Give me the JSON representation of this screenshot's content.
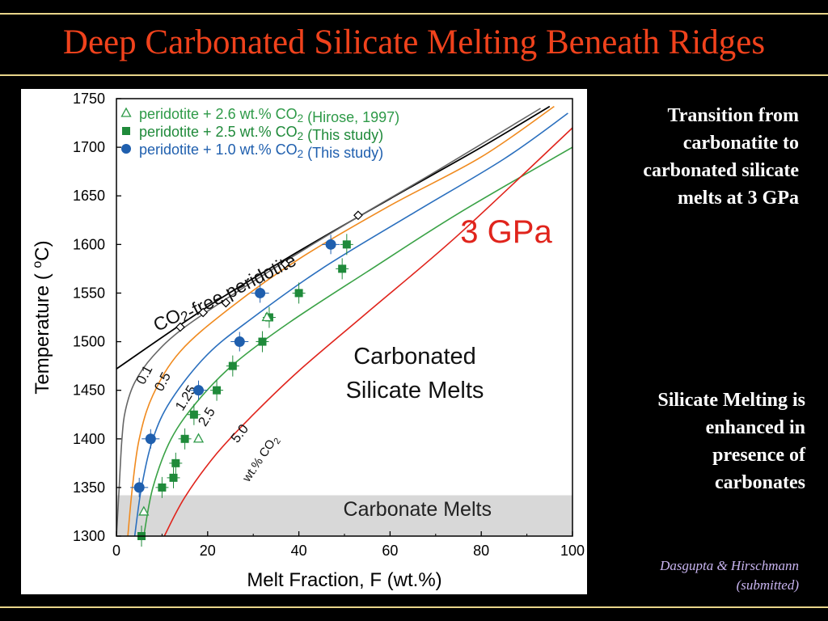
{
  "slide": {
    "title": "Deep Carbonated Silicate Melting Beneath Ridges",
    "note_top": [
      "Transition from",
      "carbonatite to",
      "carbonated silicate",
      "melts at 3 GPa"
    ],
    "note_bottom": [
      "Silicate Melting is",
      "enhanced in",
      "presence of",
      "carbonates"
    ],
    "citation": [
      "Dasgupta & Hirschmann",
      "(submitted)"
    ],
    "colors": {
      "background": "#000000",
      "title": "#f0421c",
      "rule": "#e8d58a",
      "citation": "#c8b4f0"
    }
  },
  "chart_data": {
    "type": "scatter",
    "xlabel": "Melt Fraction, F (wt.%)",
    "ylabel": "Temperature ( oC)",
    "xlim": [
      0,
      100
    ],
    "ylim": [
      1300,
      1750
    ],
    "xticks": [
      0,
      20,
      40,
      60,
      80,
      100
    ],
    "yticks": [
      1300,
      1350,
      1400,
      1450,
      1500,
      1550,
      1600,
      1650,
      1700,
      1750
    ],
    "pressure_label": "3 GPa",
    "region_labels": [
      "Carbonated",
      "Silicate Melts"
    ],
    "band": {
      "label": "Carbonate Melts",
      "ymin": 1300,
      "ymax": 1342,
      "color": "#d8d8d8"
    },
    "legend_position": "top-left",
    "legend": [
      {
        "marker": "triangle-open",
        "text": "peridotite + 2.6 wt.% CO2 (Hirose, 1997)",
        "color": "#2e9a48"
      },
      {
        "marker": "square",
        "text": "peridotite + 2.5 wt.% CO2 (This study)",
        "color": "#1f8a3a"
      },
      {
        "marker": "circle",
        "text": "peridotite + 1.0 wt.% CO2 (This study)",
        "color": "#1f5fae"
      }
    ],
    "curves": [
      {
        "label": "CO2-free peridotite",
        "color": "#000000",
        "points": [
          [
            0,
            1472
          ],
          [
            20,
            1536
          ],
          [
            40,
            1593
          ],
          [
            60,
            1647
          ],
          [
            80,
            1700
          ],
          [
            95,
            1742
          ]
        ]
      },
      {
        "label": "0.1",
        "color": "#666666",
        "points": [
          [
            0,
            1300
          ],
          [
            0.6,
            1350
          ],
          [
            1.2,
            1400
          ],
          [
            2,
            1430
          ],
          [
            4,
            1458
          ],
          [
            8,
            1485
          ],
          [
            15,
            1515
          ],
          [
            30,
            1562
          ],
          [
            50,
            1620
          ],
          [
            70,
            1675
          ],
          [
            93,
            1740
          ]
        ]
      },
      {
        "label": "0.5",
        "color": "#f08a1e",
        "points": [
          [
            2.5,
            1300
          ],
          [
            3.5,
            1350
          ],
          [
            5,
            1400
          ],
          [
            8,
            1445
          ],
          [
            14,
            1490
          ],
          [
            25,
            1535
          ],
          [
            40,
            1585
          ],
          [
            60,
            1640
          ],
          [
            80,
            1690
          ],
          [
            96,
            1742
          ]
        ]
      },
      {
        "label": "1.25",
        "color": "#2a6fbe",
        "points": [
          [
            4,
            1300
          ],
          [
            5.5,
            1350
          ],
          [
            8,
            1400
          ],
          [
            12,
            1440
          ],
          [
            20,
            1487
          ],
          [
            30,
            1525
          ],
          [
            45,
            1575
          ],
          [
            65,
            1632
          ],
          [
            85,
            1688
          ],
          [
            99,
            1735
          ]
        ]
      },
      {
        "label": "2.5",
        "color": "#3aa246",
        "points": [
          [
            6,
            1300
          ],
          [
            8,
            1350
          ],
          [
            12,
            1400
          ],
          [
            18,
            1440
          ],
          [
            26,
            1478
          ],
          [
            38,
            1520
          ],
          [
            55,
            1572
          ],
          [
            75,
            1632
          ],
          [
            100,
            1700
          ]
        ]
      },
      {
        "label": "5.0",
        "color": "#e0241c",
        "points": [
          [
            10.5,
            1300
          ],
          [
            15,
            1340
          ],
          [
            22,
            1385
          ],
          [
            30,
            1425
          ],
          [
            40,
            1470
          ],
          [
            55,
            1530
          ],
          [
            75,
            1610
          ],
          [
            100,
            1720
          ]
        ]
      }
    ],
    "curve_annotation": "wt.% CO2",
    "series": [
      {
        "name": "peridotite + 2.6 wt.% CO2 (Hirose, 1997)",
        "marker": "triangle-open",
        "points": [
          [
            6,
            1325
          ],
          [
            18,
            1400
          ],
          [
            33,
            1525
          ]
        ]
      },
      {
        "name": "peridotite + 2.5 wt.% CO2 (This study)",
        "marker": "square",
        "points": [
          [
            5.5,
            1300
          ],
          [
            10,
            1350
          ],
          [
            12.5,
            1360
          ],
          [
            13,
            1375
          ],
          [
            15,
            1400
          ],
          [
            17,
            1425
          ],
          [
            22,
            1450
          ],
          [
            25.5,
            1475
          ],
          [
            32,
            1500
          ],
          [
            33.5,
            1525
          ],
          [
            40,
            1550
          ],
          [
            49.5,
            1575
          ],
          [
            50.5,
            1600
          ]
        ]
      },
      {
        "name": "peridotite + 1.0 wt.% CO2 (This study)",
        "marker": "circle",
        "points": [
          [
            5,
            1350
          ],
          [
            7.5,
            1400
          ],
          [
            18,
            1450
          ],
          [
            27,
            1500
          ],
          [
            31.5,
            1550
          ],
          [
            47,
            1600
          ]
        ]
      }
    ],
    "co2_free_points": [
      [
        14,
        1515
      ],
      [
        19,
        1530
      ],
      [
        24,
        1540
      ],
      [
        37,
        1580
      ],
      [
        53,
        1630
      ]
    ]
  }
}
